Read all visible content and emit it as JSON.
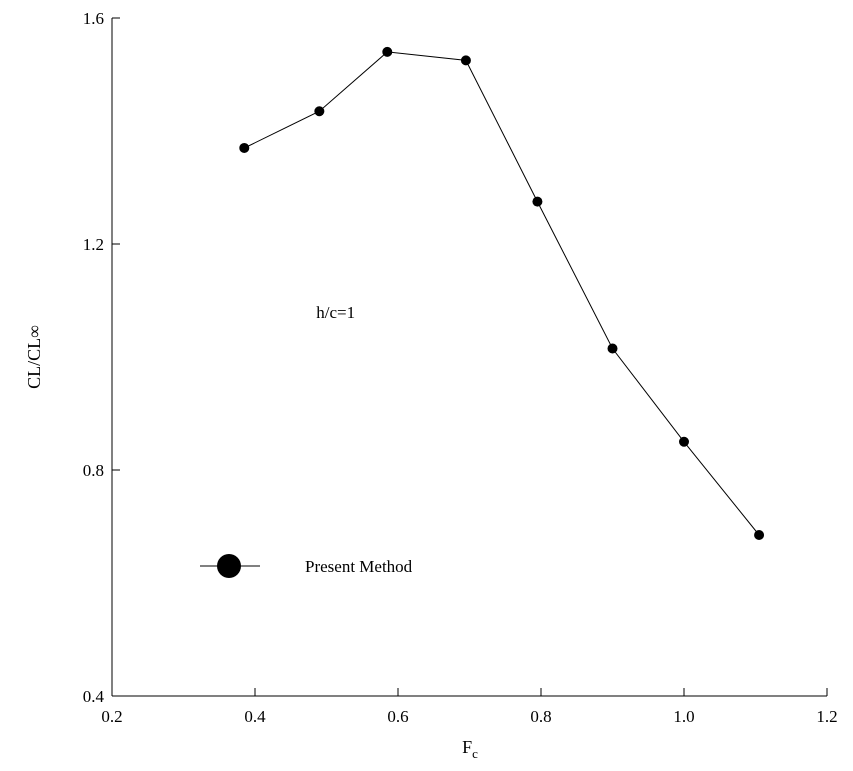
{
  "chart_data": {
    "type": "line",
    "title": "",
    "xlabel": "F",
    "xlabel_sub": "c",
    "ylabel": "CL/CL∞",
    "xlim": [
      0.2,
      1.2
    ],
    "ylim": [
      0.4,
      1.6
    ],
    "x_ticks": [
      0.2,
      0.4,
      0.6,
      0.8,
      1.0,
      1.2
    ],
    "x_tick_labels": [
      "0.2",
      "0.4",
      "0.6",
      "0.8",
      "1.0",
      "1.2"
    ],
    "y_ticks": [
      0.4,
      0.8,
      1.2,
      1.6
    ],
    "y_tick_labels": [
      "0.4",
      "0.8",
      "1.2",
      "1.6"
    ],
    "grid": false,
    "legend": {
      "placement": "lower-left"
    },
    "annotations": [
      {
        "text": "h/c=1",
        "x": 0.55,
        "y": 1.08
      }
    ],
    "series": [
      {
        "name": "Present Method",
        "marker": "filled-circle",
        "color": "#000000",
        "x": [
          0.385,
          0.49,
          0.585,
          0.695,
          0.795,
          0.9,
          1.0,
          1.105
        ],
        "y": [
          1.37,
          1.435,
          1.54,
          1.525,
          1.275,
          1.015,
          0.85,
          0.685
        ]
      }
    ]
  }
}
